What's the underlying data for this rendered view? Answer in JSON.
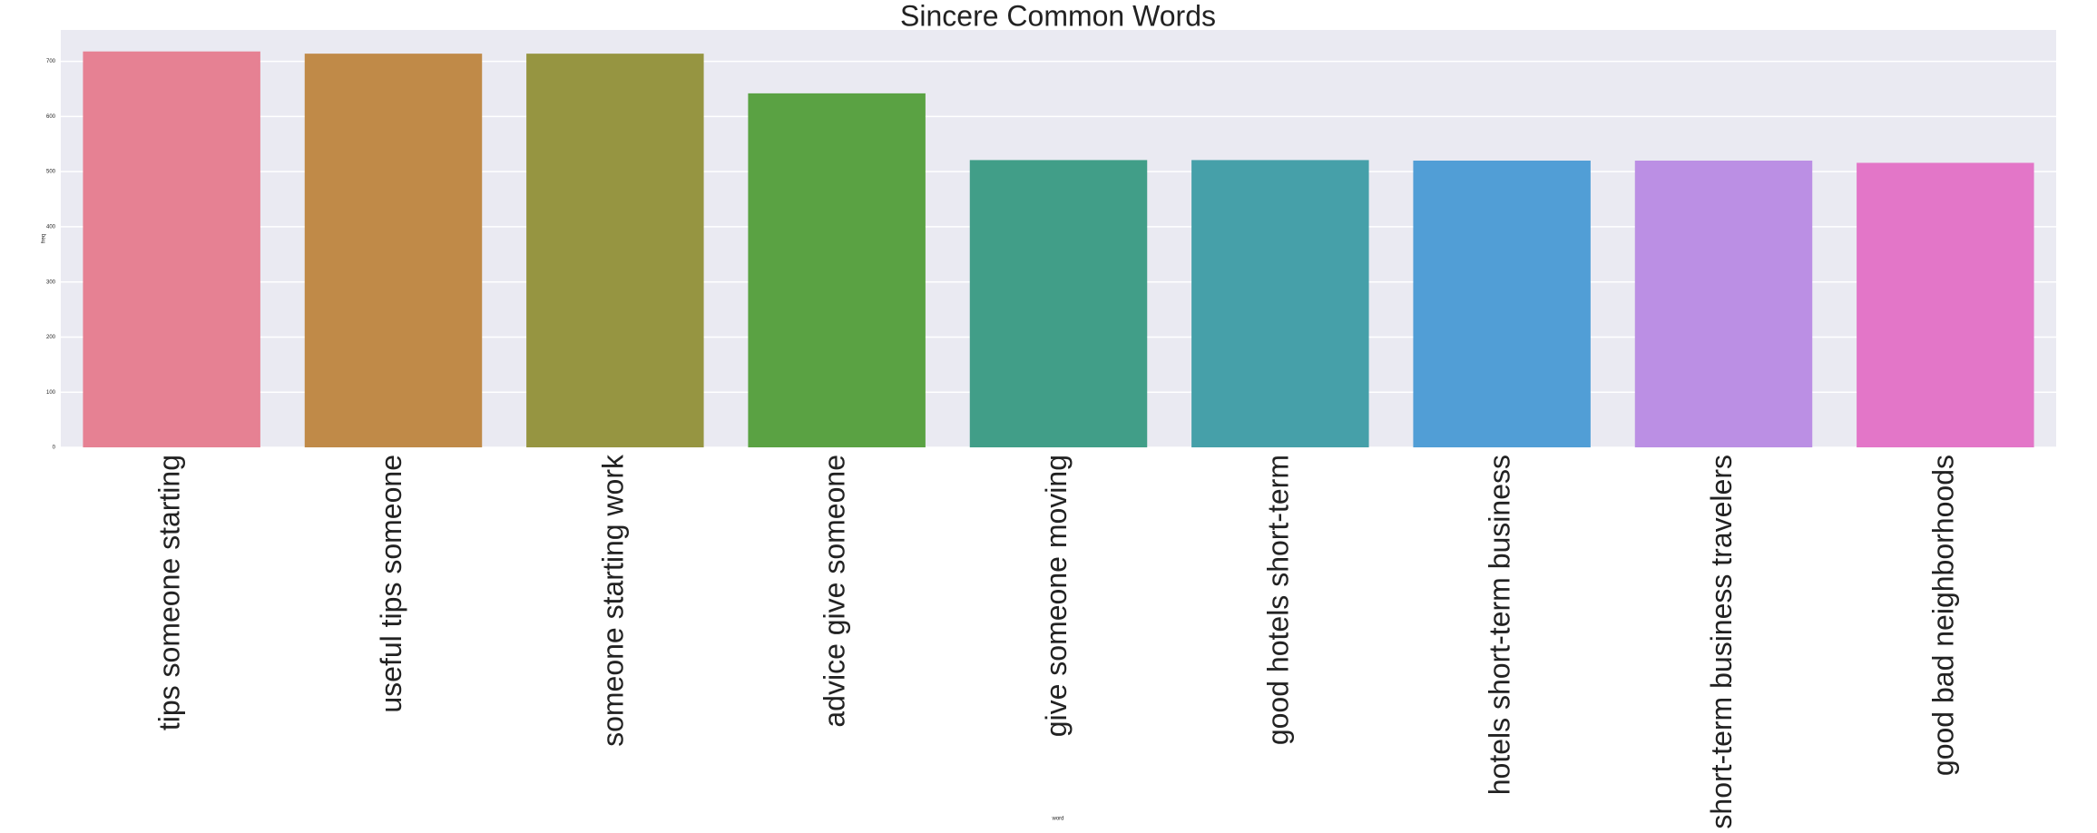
{
  "chart_data": {
    "type": "bar",
    "title": "Sincere Common Words",
    "x_label": "word",
    "y_label": "freq",
    "categories": [
      "tips someone starting",
      "useful tips someone",
      "someone starting work",
      "advice give someone",
      "give someone moving",
      "good hotels short-term",
      "hotels short-term business",
      "short-term business travelers",
      "good bad neighborhoods"
    ],
    "values": [
      718,
      714,
      714,
      642,
      521,
      521,
      520,
      520,
      516
    ],
    "colors": [
      "#e68193",
      "#c08a48",
      "#969541",
      "#5aa243",
      "#419e88",
      "#46a0a9",
      "#519ed6",
      "#bb8fe4",
      "#e376c8"
    ],
    "ylim": [
      0,
      757
    ],
    "yticks": [
      0,
      100,
      200,
      300,
      400,
      500,
      600,
      700
    ],
    "grid": true
  }
}
